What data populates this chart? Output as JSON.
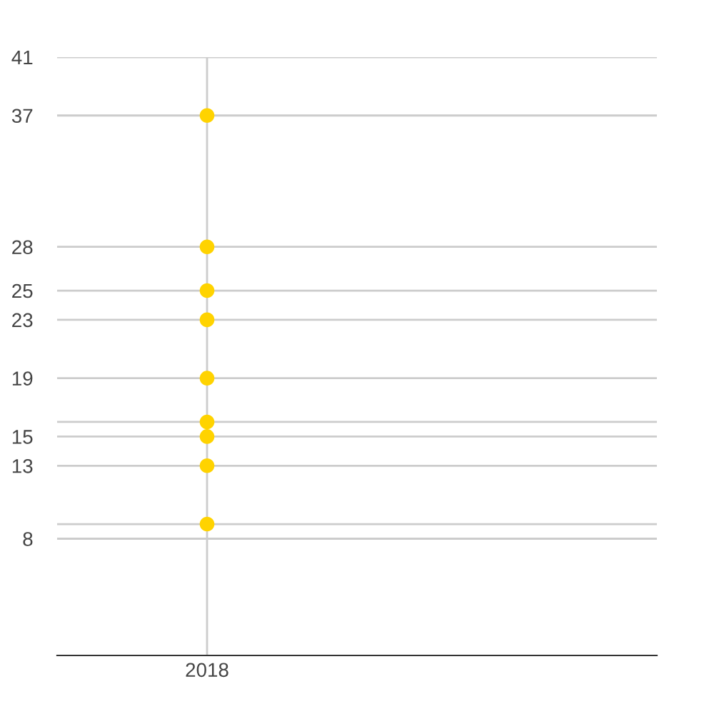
{
  "chart_data": {
    "type": "scatter",
    "categories": [
      "2018"
    ],
    "series": [
      {
        "values": [
          37
        ],
        "color": "#ffd300"
      },
      {
        "values": [
          28
        ],
        "color": "#ffd300"
      },
      {
        "values": [
          25
        ],
        "color": "#ffd300"
      },
      {
        "values": [
          23
        ],
        "color": "#ffd300"
      },
      {
        "values": [
          19
        ],
        "color": "#ffd300"
      },
      {
        "values": [
          16
        ],
        "color": "#ffd300"
      },
      {
        "values": [
          15
        ],
        "color": "#ffd300"
      },
      {
        "values": [
          13
        ],
        "color": "#ffd300"
      },
      {
        "values": [
          9
        ],
        "color": "#ffd300"
      }
    ],
    "marker": "circle",
    "ylim": [
      0,
      41
    ],
    "yticks": [
      8,
      {
        "value": 9,
        "label": null
      },
      13,
      15,
      {
        "value": 16,
        "label": null
      },
      19,
      23,
      25,
      28,
      37,
      41
    ],
    "grid": true,
    "legend": false
  }
}
